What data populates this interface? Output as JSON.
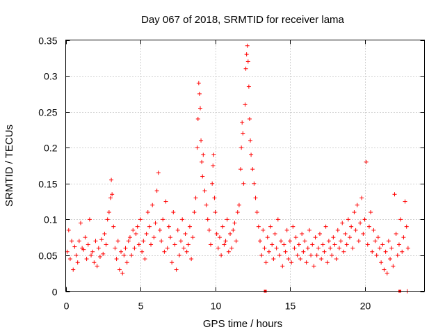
{
  "chart_data": {
    "type": "scatter",
    "title": "Day 067 of 2018, SRMTID for receiver lama",
    "xlabel": "GPS time / hours",
    "ylabel": "SRMTID / TECUs",
    "xlim": [
      0,
      24
    ],
    "ylim": [
      0,
      0.35
    ],
    "grid": true,
    "marker": "+",
    "color": "#ff0000",
    "x_ticks": [
      0,
      5,
      10,
      15,
      20
    ],
    "x_tick_labels": [
      "0",
      "5",
      "10",
      "15",
      "20"
    ],
    "y_ticks": [
      0,
      0.05,
      0.1,
      0.15,
      0.2,
      0.25,
      0.3,
      0.35
    ],
    "y_tick_labels": [
      "0",
      "0.05",
      "0.1",
      "0.15",
      "0.2",
      "0.25",
      "0.3",
      "0.35"
    ],
    "series": [
      {
        "name": "SRMTID",
        "points": [
          [
            0.1,
            0.055
          ],
          [
            0.2,
            0.085
          ],
          [
            0.3,
            0.045
          ],
          [
            0.4,
            0.07
          ],
          [
            0.5,
            0.03
          ],
          [
            0.6,
            0.062
          ],
          [
            0.7,
            0.05
          ],
          [
            0.8,
            0.04
          ],
          [
            0.9,
            0.07
          ],
          [
            1.0,
            0.095
          ],
          [
            1.1,
            0.06
          ],
          [
            1.2,
            0.058
          ],
          [
            1.3,
            0.075
          ],
          [
            1.4,
            0.045
          ],
          [
            1.5,
            0.065
          ],
          [
            1.6,
            0.1
          ],
          [
            1.7,
            0.05
          ],
          [
            1.8,
            0.055
          ],
          [
            1.9,
            0.04
          ],
          [
            2.0,
            0.07
          ],
          [
            2.1,
            0.035
          ],
          [
            2.2,
            0.06
          ],
          [
            2.3,
            0.048
          ],
          [
            2.4,
            0.072
          ],
          [
            2.5,
            0.052
          ],
          [
            2.6,
            0.08
          ],
          [
            2.7,
            0.065
          ],
          [
            2.8,
            0.1
          ],
          [
            2.9,
            0.11
          ],
          [
            3.0,
            0.13
          ],
          [
            3.05,
            0.155
          ],
          [
            3.1,
            0.135
          ],
          [
            3.2,
            0.09
          ],
          [
            3.3,
            0.06
          ],
          [
            3.4,
            0.045
          ],
          [
            3.5,
            0.07
          ],
          [
            3.6,
            0.03
          ],
          [
            3.7,
            0.055
          ],
          [
            3.8,
            0.025
          ],
          [
            3.9,
            0.05
          ],
          [
            4.0,
            0.06
          ],
          [
            4.1,
            0.04
          ],
          [
            4.2,
            0.07
          ],
          [
            4.3,
            0.075
          ],
          [
            4.4,
            0.05
          ],
          [
            4.5,
            0.085
          ],
          [
            4.6,
            0.06
          ],
          [
            4.7,
            0.08
          ],
          [
            4.8,
            0.09
          ],
          [
            4.9,
            0.065
          ],
          [
            5.0,
            0.1
          ],
          [
            5.1,
            0.055
          ],
          [
            5.2,
            0.07
          ],
          [
            5.3,
            0.045
          ],
          [
            5.4,
            0.08
          ],
          [
            5.5,
            0.11
          ],
          [
            5.6,
            0.09
          ],
          [
            5.7,
            0.065
          ],
          [
            5.8,
            0.12
          ],
          [
            5.9,
            0.075
          ],
          [
            6.0,
            0.095
          ],
          [
            6.1,
            0.14
          ],
          [
            6.2,
            0.165
          ],
          [
            6.3,
            0.085
          ],
          [
            6.4,
            0.07
          ],
          [
            6.5,
            0.1
          ],
          [
            6.6,
            0.055
          ],
          [
            6.7,
            0.125
          ],
          [
            6.8,
            0.06
          ],
          [
            6.9,
            0.09
          ],
          [
            7.0,
            0.075
          ],
          [
            7.1,
            0.04
          ],
          [
            7.2,
            0.11
          ],
          [
            7.3,
            0.065
          ],
          [
            7.4,
            0.03
          ],
          [
            7.5,
            0.085
          ],
          [
            7.6,
            0.05
          ],
          [
            7.7,
            0.07
          ],
          [
            7.8,
            0.1
          ],
          [
            7.9,
            0.06
          ],
          [
            8.0,
            0.08
          ],
          [
            8.1,
            0.055
          ],
          [
            8.2,
            0.065
          ],
          [
            8.3,
            0.09
          ],
          [
            8.4,
            0.045
          ],
          [
            8.5,
            0.075
          ],
          [
            8.6,
            0.11
          ],
          [
            8.7,
            0.13
          ],
          [
            8.8,
            0.2
          ],
          [
            8.85,
            0.24
          ],
          [
            8.9,
            0.29
          ],
          [
            8.95,
            0.275
          ],
          [
            9.0,
            0.255
          ],
          [
            9.05,
            0.21
          ],
          [
            9.1,
            0.18
          ],
          [
            9.15,
            0.16
          ],
          [
            9.2,
            0.19
          ],
          [
            9.3,
            0.14
          ],
          [
            9.4,
            0.12
          ],
          [
            9.5,
            0.1
          ],
          [
            9.6,
            0.085
          ],
          [
            9.7,
            0.065
          ],
          [
            9.8,
            0.15
          ],
          [
            9.85,
            0.175
          ],
          [
            9.9,
            0.19
          ],
          [
            9.95,
            0.13
          ],
          [
            10.0,
            0.11
          ],
          [
            10.1,
            0.08
          ],
          [
            10.2,
            0.06
          ],
          [
            10.3,
            0.075
          ],
          [
            10.4,
            0.05
          ],
          [
            10.5,
            0.09
          ],
          [
            10.6,
            0.065
          ],
          [
            10.7,
            0.07
          ],
          [
            10.8,
            0.1
          ],
          [
            10.9,
            0.055
          ],
          [
            11.0,
            0.08
          ],
          [
            11.1,
            0.06
          ],
          [
            11.2,
            0.085
          ],
          [
            11.3,
            0.095
          ],
          [
            11.4,
            0.07
          ],
          [
            11.5,
            0.11
          ],
          [
            11.6,
            0.12
          ],
          [
            11.7,
            0.17
          ],
          [
            11.75,
            0.2
          ],
          [
            11.8,
            0.235
          ],
          [
            11.85,
            0.22
          ],
          [
            11.9,
            0.15
          ],
          [
            12.0,
            0.26
          ],
          [
            12.05,
            0.31
          ],
          [
            12.1,
            0.33
          ],
          [
            12.15,
            0.342
          ],
          [
            12.2,
            0.32
          ],
          [
            12.25,
            0.285
          ],
          [
            12.3,
            0.24
          ],
          [
            12.35,
            0.21
          ],
          [
            12.4,
            0.19
          ],
          [
            12.5,
            0.17
          ],
          [
            12.6,
            0.15
          ],
          [
            12.7,
            0.13
          ],
          [
            12.8,
            0.11
          ],
          [
            12.9,
            0.09
          ],
          [
            13.0,
            0.07
          ],
          [
            13.1,
            0.05
          ],
          [
            13.2,
            0.085
          ],
          [
            13.3,
            0.06
          ],
          [
            13.4,
            0.04
          ],
          [
            13.5,
            0.075
          ],
          [
            13.6,
            0.055
          ],
          [
            13.7,
            0.09
          ],
          [
            13.8,
            0.065
          ],
          [
            13.9,
            0.045
          ],
          [
            14.0,
            0.08
          ],
          [
            14.1,
            0.06
          ],
          [
            14.2,
            0.1
          ],
          [
            14.3,
            0.05
          ],
          [
            14.4,
            0.07
          ],
          [
            14.5,
            0.035
          ],
          [
            14.6,
            0.065
          ],
          [
            14.7,
            0.055
          ],
          [
            14.8,
            0.085
          ],
          [
            14.9,
            0.045
          ],
          [
            15.0,
            0.07
          ],
          [
            15.1,
            0.04
          ],
          [
            15.2,
            0.09
          ],
          [
            15.3,
            0.06
          ],
          [
            15.4,
            0.075
          ],
          [
            15.5,
            0.05
          ],
          [
            15.6,
            0.065
          ],
          [
            15.7,
            0.045
          ],
          [
            15.8,
            0.08
          ],
          [
            15.9,
            0.055
          ],
          [
            16.0,
            0.07
          ],
          [
            16.1,
            0.04
          ],
          [
            16.2,
            0.06
          ],
          [
            16.3,
            0.085
          ],
          [
            16.4,
            0.05
          ],
          [
            16.5,
            0.065
          ],
          [
            16.6,
            0.035
          ],
          [
            16.7,
            0.075
          ],
          [
            16.8,
            0.05
          ],
          [
            16.9,
            0.06
          ],
          [
            17.0,
            0.08
          ],
          [
            17.1,
            0.045
          ],
          [
            17.2,
            0.065
          ],
          [
            17.3,
            0.055
          ],
          [
            17.4,
            0.09
          ],
          [
            17.5,
            0.04
          ],
          [
            17.6,
            0.07
          ],
          [
            17.7,
            0.06
          ],
          [
            17.8,
            0.05
          ],
          [
            17.9,
            0.075
          ],
          [
            18.0,
            0.065
          ],
          [
            18.1,
            0.045
          ],
          [
            18.2,
            0.085
          ],
          [
            18.3,
            0.06
          ],
          [
            18.4,
            0.07
          ],
          [
            18.5,
            0.095
          ],
          [
            18.6,
            0.055
          ],
          [
            18.7,
            0.08
          ],
          [
            18.8,
            0.065
          ],
          [
            18.9,
            0.1
          ],
          [
            19.0,
            0.075
          ],
          [
            19.1,
            0.09
          ],
          [
            19.2,
            0.06
          ],
          [
            19.3,
            0.11
          ],
          [
            19.4,
            0.085
          ],
          [
            19.5,
            0.12
          ],
          [
            19.6,
            0.07
          ],
          [
            19.7,
            0.095
          ],
          [
            19.8,
            0.13
          ],
          [
            19.9,
            0.08
          ],
          [
            20.0,
            0.1
          ],
          [
            20.1,
            0.18
          ],
          [
            20.2,
            0.065
          ],
          [
            20.3,
            0.09
          ],
          [
            20.4,
            0.11
          ],
          [
            20.5,
            0.055
          ],
          [
            20.6,
            0.085
          ],
          [
            20.7,
            0.07
          ],
          [
            20.8,
            0.05
          ],
          [
            20.9,
            0.075
          ],
          [
            21.0,
            0.06
          ],
          [
            21.1,
            0.04
          ],
          [
            21.2,
            0.065
          ],
          [
            21.3,
            0.03
          ],
          [
            21.4,
            0.055
          ],
          [
            21.5,
            0.025
          ],
          [
            21.6,
            0.07
          ],
          [
            21.7,
            0.045
          ],
          [
            21.8,
            0.06
          ],
          [
            21.9,
            0.035
          ],
          [
            22.0,
            0.135
          ],
          [
            22.1,
            0.08
          ],
          [
            22.2,
            0.05
          ],
          [
            22.3,
            0.065
          ],
          [
            22.4,
            0.1
          ],
          [
            22.5,
            0.055
          ],
          [
            22.6,
            0.075
          ],
          [
            22.7,
            0.125
          ],
          [
            22.8,
            0.09
          ],
          [
            22.9,
            0.06
          ]
        ]
      }
    ],
    "zero_markers": [
      13.35,
      22.35
    ],
    "zero_edge_plus": [
      22.85
    ]
  }
}
